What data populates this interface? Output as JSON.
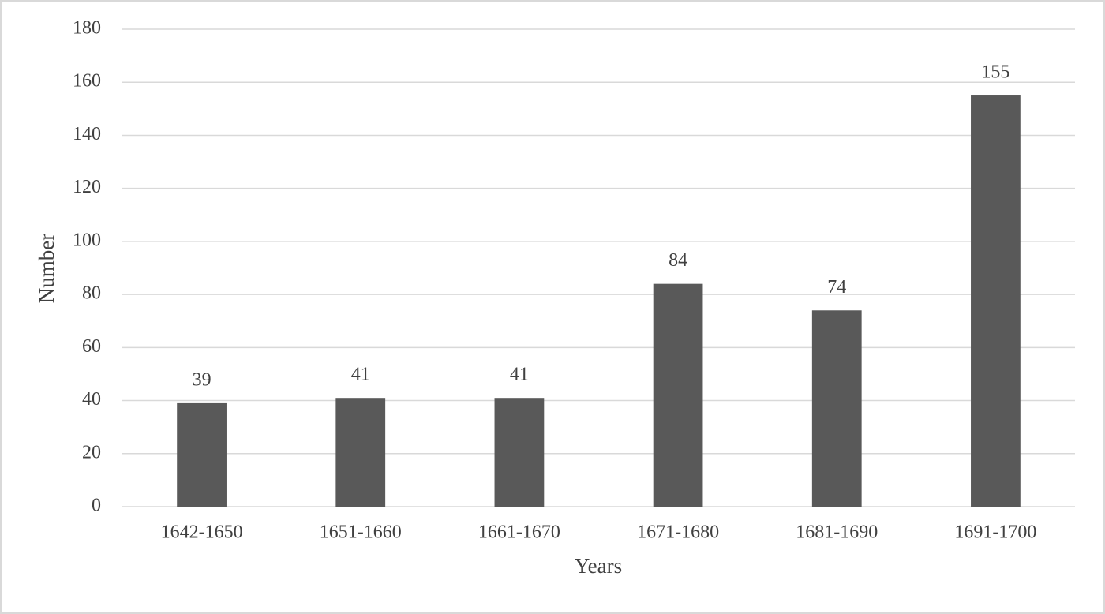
{
  "chart_data": {
    "type": "bar",
    "categories": [
      "1642-1650",
      "1651-1660",
      "1661-1670",
      "1671-1680",
      "1681-1690",
      "1691-1700"
    ],
    "values": [
      39,
      41,
      41,
      84,
      74,
      155
    ],
    "color": "#595959",
    "x_label": "Years",
    "y_label": "Number",
    "ylim": [
      0,
      180
    ],
    "yticks": [
      0,
      20,
      40,
      60,
      80,
      100,
      120,
      140,
      160,
      180
    ],
    "grid": true,
    "data_labels": true
  }
}
